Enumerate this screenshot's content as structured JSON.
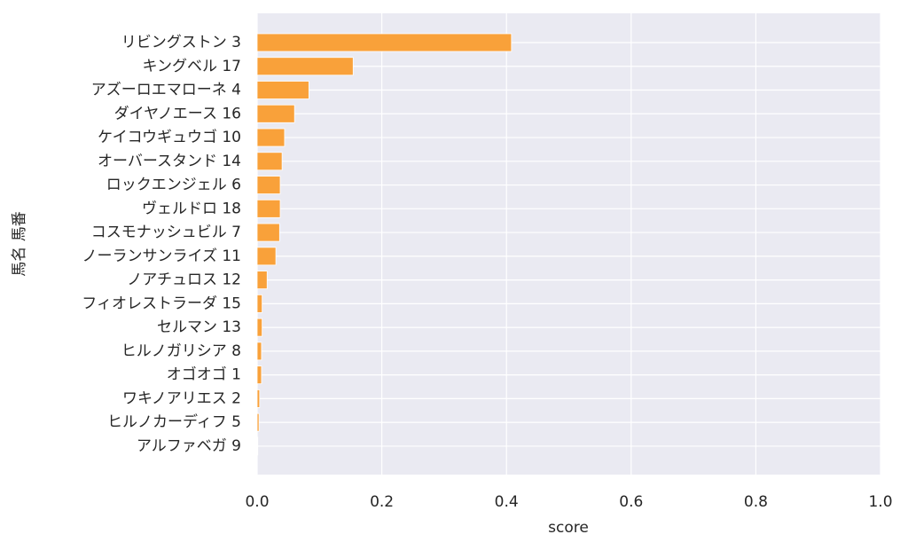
{
  "chart_data": {
    "type": "barh",
    "categories": [
      "リビングストン 3",
      "キングベル 17",
      "アズーロエマローネ 4",
      "ダイヤノエース 16",
      "ケイコウギュウゴ 10",
      "オーバースタンド 14",
      "ロックエンジェル 6",
      "ヴェルドロ 18",
      "コスモナッシュビル 7",
      "ノーランサンライズ 11",
      "ノアチュロス 12",
      "フィオレストラーダ 15",
      "セルマン 13",
      "ヒルノガリシア 8",
      "オゴオゴ 1",
      "ワキノアリエス 2",
      "ヒルノカーディフ 5",
      "アルファベガ 9"
    ],
    "values": [
      0.408,
      0.154,
      0.083,
      0.06,
      0.044,
      0.04,
      0.037,
      0.037,
      0.036,
      0.03,
      0.016,
      0.008,
      0.008,
      0.007,
      0.007,
      0.004,
      0.003,
      0.001
    ],
    "color": "#f9a13a",
    "xlabel": "score",
    "ylabel": "馬名 馬番",
    "xlim": [
      0,
      1
    ],
    "xticks": [
      {
        "value": 0,
        "label": "0.0"
      },
      {
        "value": 0.2,
        "label": "0.2"
      },
      {
        "value": 0.4,
        "label": "0.4"
      },
      {
        "value": 0.6,
        "label": "0.6"
      },
      {
        "value": 0.8,
        "label": "0.8"
      },
      {
        "value": 1,
        "label": "1.0"
      }
    ],
    "grid": true
  }
}
